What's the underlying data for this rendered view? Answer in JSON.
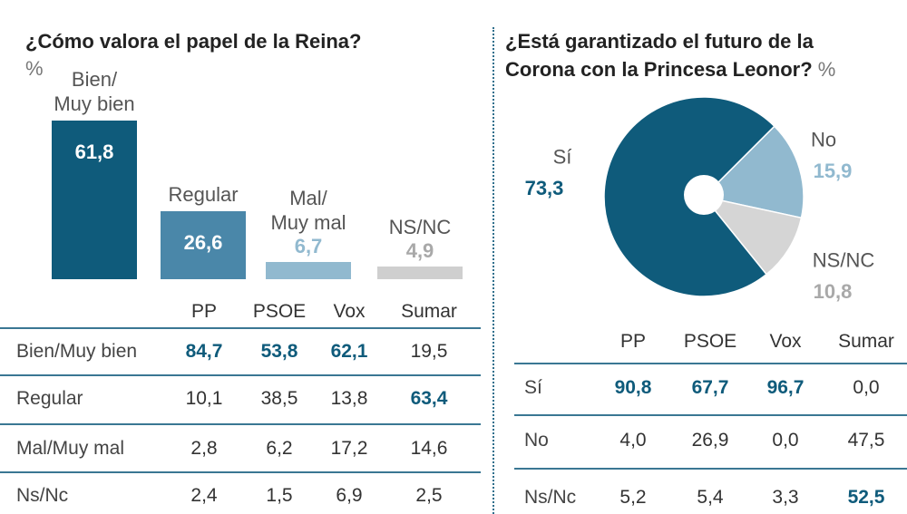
{
  "chart_data": [
    {
      "type": "bar",
      "title": "¿Cómo valora el papel de la Reina?",
      "unit": "%",
      "categories": [
        "Bien/\nMuy bien",
        "Regular",
        "Mal/\nMuy mal",
        "NS/NC"
      ],
      "values": [
        61.8,
        26.6,
        6.7,
        4.9
      ],
      "value_labels": [
        "61,8",
        "26,6",
        "6,7",
        "4,9"
      ],
      "colors": [
        "#0f5b7b",
        "#4a87a9",
        "#91b9cf",
        "#cfcfcf"
      ],
      "label_colors": [
        "#ffffff",
        "#ffffff",
        "#91b9cf",
        "#a9a9a9"
      ]
    },
    {
      "type": "pie",
      "title": "¿Está garantizado el futuro de la\nCorona con la Princesa Leonor?",
      "unit": "%",
      "categories": [
        "Sí",
        "No",
        "NS/NC"
      ],
      "values": [
        73.3,
        15.9,
        10.8
      ],
      "value_labels": [
        "73,3",
        "15,9",
        "10,8"
      ],
      "colors": [
        "#0f5b7b",
        "#91b9cf",
        "#d5d5d5"
      ],
      "label_colors": [
        "#0f5b7b",
        "#91b9cf",
        "#a9a9a9"
      ]
    }
  ],
  "tables": [
    {
      "columns": [
        "PP",
        "PSOE",
        "Vox",
        "Sumar"
      ],
      "rows": [
        {
          "label": "Bien/Muy bien",
          "cells": [
            "84,7",
            "53,8",
            "62,1",
            "19,5"
          ],
          "highlight": [
            true,
            true,
            true,
            false
          ]
        },
        {
          "label": "Regular",
          "cells": [
            "10,1",
            "38,5",
            "13,8",
            "63,4"
          ],
          "highlight": [
            false,
            false,
            false,
            true
          ]
        },
        {
          "label": "Mal/Muy mal",
          "cells": [
            "2,8",
            "6,2",
            "17,2",
            "14,6"
          ],
          "highlight": [
            false,
            false,
            false,
            false
          ]
        },
        {
          "label": "Ns/Nc",
          "cells": [
            "2,4",
            "1,5",
            "6,9",
            "2,5"
          ],
          "highlight": [
            false,
            false,
            false,
            false
          ]
        }
      ]
    },
    {
      "columns": [
        "PP",
        "PSOE",
        "Vox",
        "Sumar"
      ],
      "rows": [
        {
          "label": "Sí",
          "cells": [
            "90,8",
            "67,7",
            "96,7",
            "0,0"
          ],
          "highlight": [
            true,
            true,
            true,
            false
          ]
        },
        {
          "label": "No",
          "cells": [
            "4,0",
            "26,9",
            "0,0",
            "47,5"
          ],
          "highlight": [
            false,
            false,
            false,
            false
          ]
        },
        {
          "label": "Ns/Nc",
          "cells": [
            "5,2",
            "5,4",
            "3,3",
            "52,5"
          ],
          "highlight": [
            false,
            false,
            false,
            true
          ]
        }
      ]
    }
  ]
}
